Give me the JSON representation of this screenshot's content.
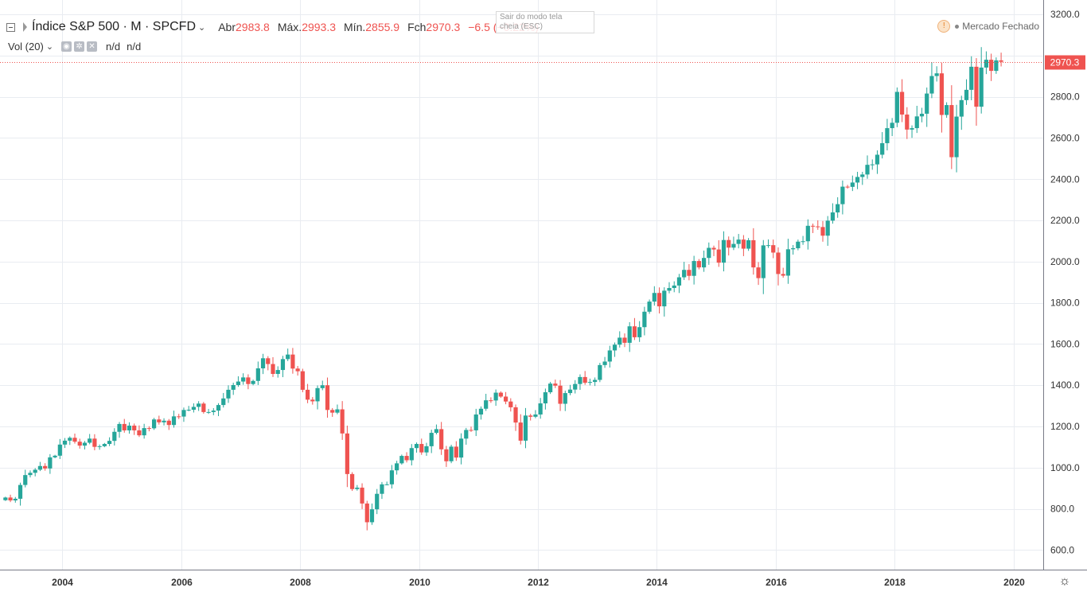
{
  "header": {
    "symbol_title": "Índice S&P 500 · M · SPCFD",
    "open_label": "Abr",
    "open_value": "2983.8",
    "high_label": "Máx.",
    "high_value": "2993.3",
    "low_label": "Mín.",
    "low_value": "2855.9",
    "close_label": "Fch",
    "close_value": "2970.3",
    "change": "−6.5 (−0.22%)"
  },
  "volume_indicator": {
    "label": "Vol (20)",
    "value1": "n/d",
    "value2": "n/d"
  },
  "tooltip": {
    "line1": "Sair do modo tela",
    "line2": "cheia (ESC)"
  },
  "market_status": "Mercado Fechado",
  "price_badge": "2970.3",
  "colors": {
    "up": "#26a69a",
    "down": "#ef5350",
    "grid": "#e9ecf1",
    "axis_text": "#333333"
  },
  "chart_data": {
    "type": "candlestick",
    "interval": "monthly",
    "x_axis": {
      "ticks": [
        "2004",
        "2006",
        "2008",
        "2010",
        "2012",
        "2014",
        "2016",
        "2018",
        "2020"
      ],
      "range": [
        2002.95,
        2020.5
      ]
    },
    "y_axis": {
      "ticks": [
        "600.0",
        "800.0",
        "1000.0",
        "1200.0",
        "1400.0",
        "1600.0",
        "1800.0",
        "2000.0",
        "2200.0",
        "2400.0",
        "2600.0",
        "2800.0",
        "3200.0"
      ],
      "range": [
        505,
        3270
      ],
      "side": "right"
    },
    "last_price": 2970.3,
    "grid": true,
    "start": "2003-01",
    "closes": [
      855,
      841,
      849,
      916,
      964,
      975,
      990,
      1008,
      996,
      1050,
      1058,
      1112,
      1131,
      1145,
      1126,
      1107,
      1121,
      1141,
      1101,
      1104,
      1115,
      1130,
      1174,
      1212,
      1181,
      1204,
      1181,
      1157,
      1192,
      1191,
      1234,
      1220,
      1228,
      1207,
      1249,
      1248,
      1280,
      1281,
      1295,
      1311,
      1270,
      1270,
      1277,
      1304,
      1336,
      1378,
      1401,
      1418,
      1438,
      1406,
      1421,
      1482,
      1531,
      1503,
      1455,
      1474,
      1527,
      1549,
      1481,
      1468,
      1378,
      1330,
      1322,
      1386,
      1400,
      1280,
      1267,
      1283,
      1166,
      969,
      896,
      903,
      826,
      735,
      798,
      873,
      919,
      919,
      987,
      1021,
      1057,
      1036,
      1095,
      1115,
      1074,
      1104,
      1169,
      1187,
      1089,
      1031,
      1102,
      1049,
      1141,
      1183,
      1181,
      1258,
      1286,
      1327,
      1326,
      1364,
      1345,
      1321,
      1293,
      1219,
      1131,
      1253,
      1247,
      1258,
      1312,
      1366,
      1408,
      1398,
      1310,
      1362,
      1379,
      1406,
      1440,
      1412,
      1416,
      1426,
      1498,
      1515,
      1569,
      1597,
      1631,
      1606,
      1686,
      1633,
      1682,
      1757,
      1806,
      1848,
      1783,
      1859,
      1872,
      1884,
      1924,
      1960,
      1931,
      2003,
      1972,
      2018,
      2067,
      2059,
      1995,
      2105,
      2068,
      2086,
      2107,
      2063,
      2104,
      1972,
      1920,
      2079,
      2080,
      2044,
      1940,
      1932,
      2060,
      2065,
      2097,
      2099,
      2174,
      2171,
      2168,
      2126,
      2199,
      2239,
      2279,
      2364,
      2363,
      2384,
      2411,
      2423,
      2470,
      2472,
      2519,
      2575,
      2648,
      2674,
      2824,
      2714,
      2641,
      2648,
      2705,
      2718,
      2816,
      2901,
      2914,
      2712,
      2760,
      2507,
      2704,
      2784,
      2834,
      2946,
      2752,
      2942,
      2980,
      2926,
      2977,
      2970
    ]
  }
}
